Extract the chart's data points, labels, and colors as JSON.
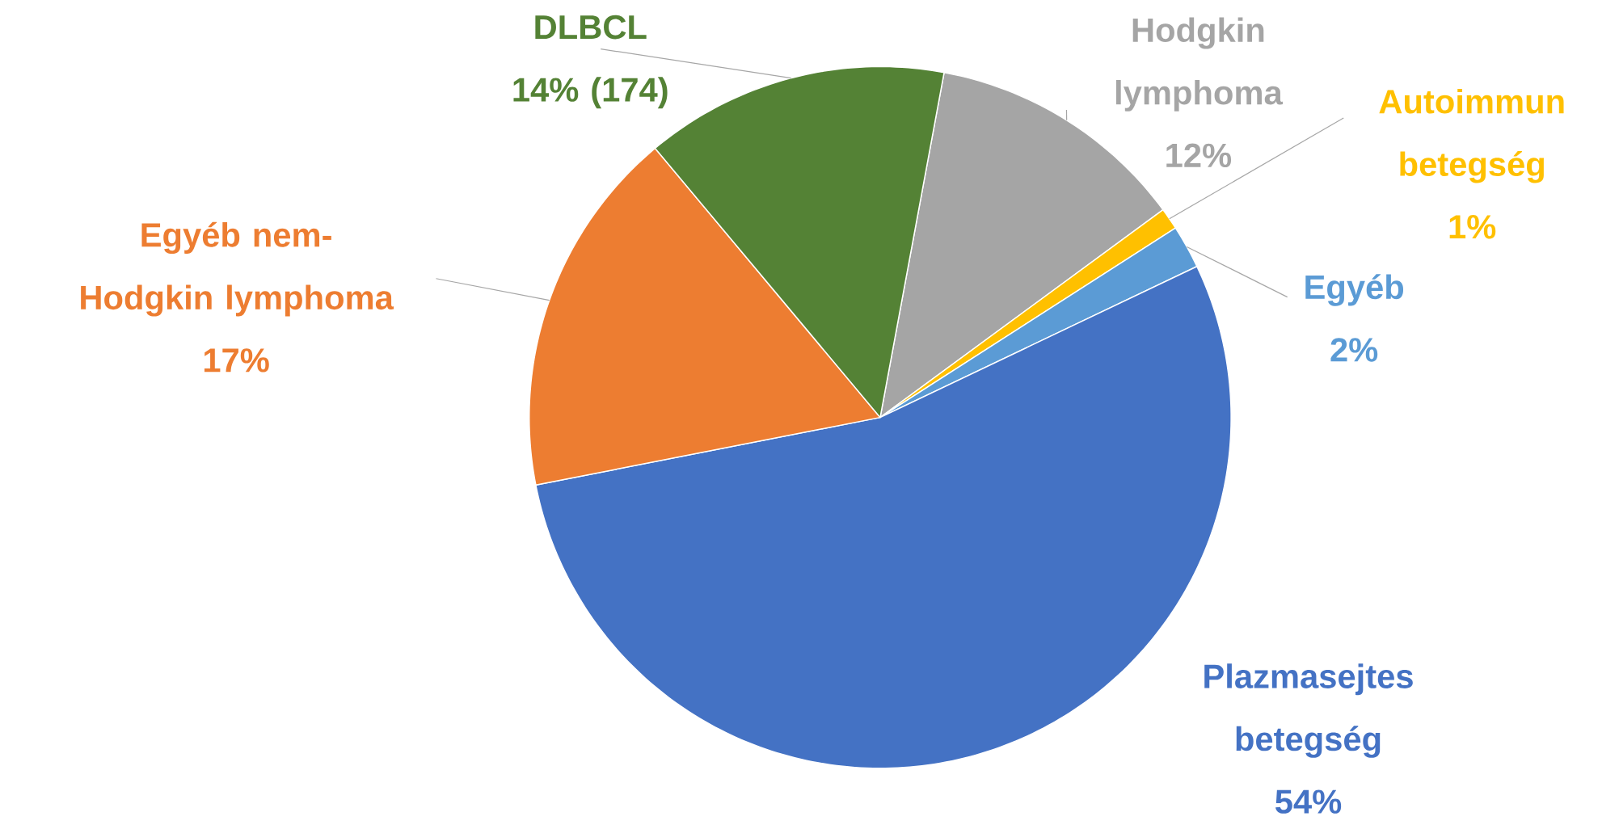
{
  "chart_data": {
    "type": "pie",
    "categories": [
      "Hodgkin lymphoma",
      "Autoimmun betegség",
      "Egyéb",
      "Plazmasejtes betegség",
      "Egyéb nem-Hodgkin lymphoma",
      "DLBCL"
    ],
    "values": [
      12,
      1,
      2,
      54,
      17,
      14
    ],
    "colors": [
      "#a5a5a5",
      "#ffc000",
      "#5b9bd5",
      "#4472c4",
      "#ed7d31",
      "#548235"
    ],
    "value_labels": [
      "12%",
      "1%",
      "2%",
      "54%",
      "17%",
      "14% (174)"
    ]
  }
}
